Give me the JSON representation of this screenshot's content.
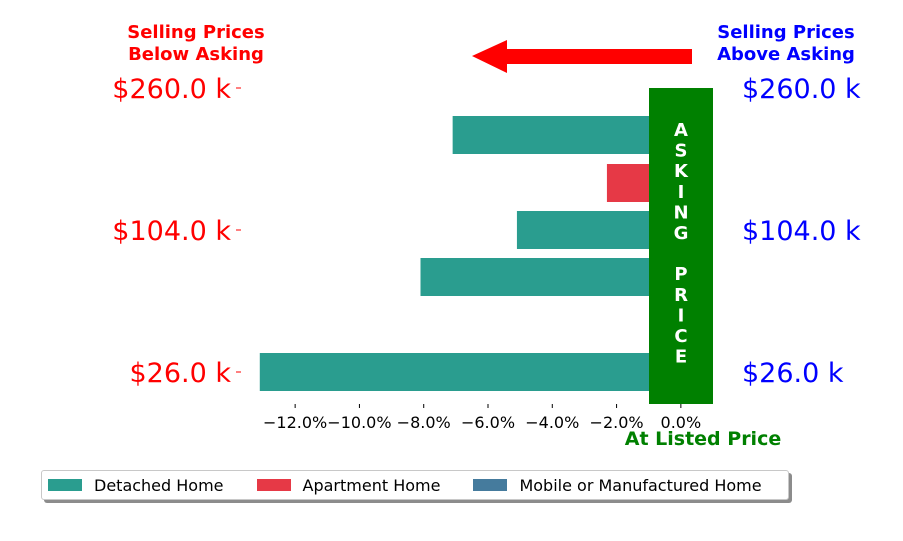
{
  "chart_data": {
    "type": "bar",
    "orientation": "horizontal",
    "xlabel": "At Listed Price",
    "xlim": [
      -13.0,
      1.0
    ],
    "x_ticks": [
      -12,
      -10,
      -8,
      -6,
      -4,
      -2,
      0
    ],
    "x_tick_labels": [
      "−12.0%",
      "−10.0%",
      "−8.0%",
      "−6.0%",
      "−4.0%",
      "−2.0%",
      "0.0%"
    ],
    "y_tick_labels_left": [
      "$260.0 k",
      "$104.0 k",
      "$26.0 k"
    ],
    "y_tick_labels_right": [
      "$260.0 k",
      "$104.0 k",
      "$26.0 k"
    ],
    "series": [
      {
        "name": "Detached Home",
        "color": "#2a9d8f"
      },
      {
        "name": "Apartment Home",
        "color": "#e63946"
      },
      {
        "name": "Mobile or Manufactured Home",
        "color": "#457b9d"
      }
    ],
    "bars": [
      {
        "series": "Detached Home",
        "value": -7.1
      },
      {
        "series": "Apartment Home",
        "value": -2.3
      },
      {
        "series": "Detached Home",
        "value": -5.1
      },
      {
        "series": "Detached Home",
        "value": -8.1
      },
      {
        "series": "Detached Home",
        "value": -13.1
      }
    ],
    "asking_band": {
      "text": "ASKING PRICE",
      "color": "#008000"
    },
    "annotations": {
      "left_header": [
        "Selling Prices",
        "Below Asking"
      ],
      "right_header": [
        "Selling Prices",
        "Above Asking"
      ],
      "arrow_color": "#ff0000"
    },
    "colors": {
      "left_labels": "#ff0000",
      "right_labels": "#0000ff",
      "listed_label": "#008000"
    },
    "legend_position": "bottom-center"
  }
}
